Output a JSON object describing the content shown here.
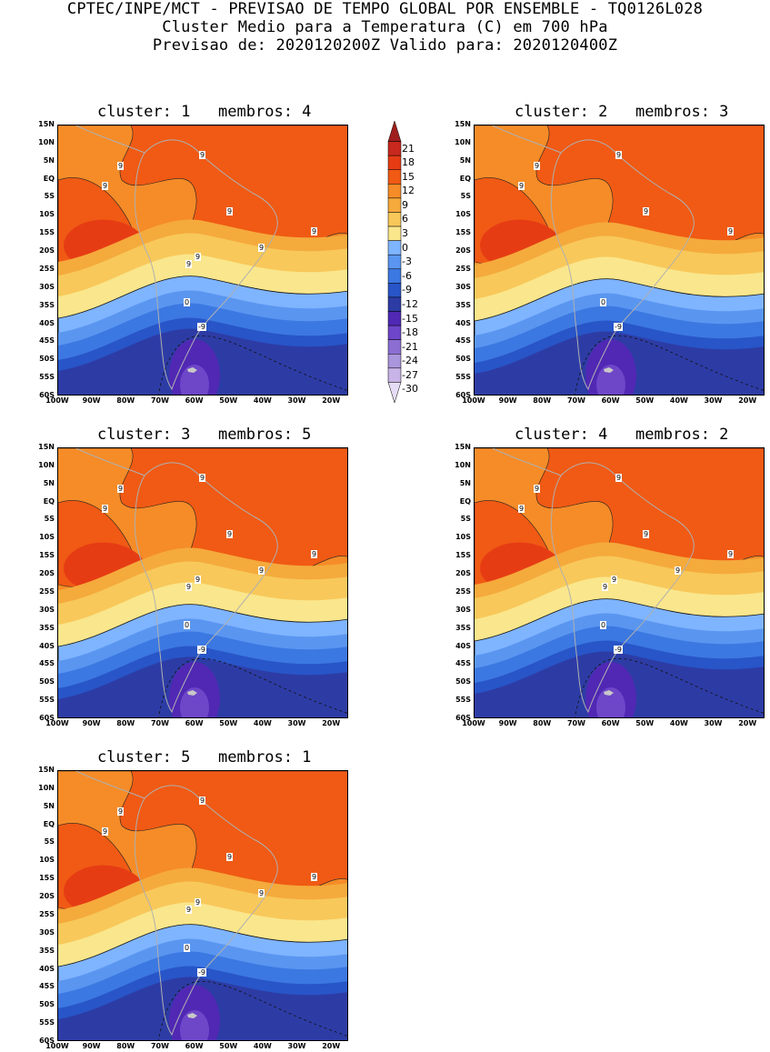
{
  "header": {
    "line1": "CPTEC/INPE/MCT - PREVISAO DE TEMPO GLOBAL POR ENSEMBLE - TQ0126L028",
    "line2": "Cluster Medio para a Temperatura (C) em 700 hPa",
    "line3": "Previsao de: 2020120200Z   Valido para: 2020120400Z"
  },
  "lat_ticks": [
    "15N",
    "10N",
    "5N",
    "EQ",
    "5S",
    "10S",
    "15S",
    "20S",
    "25S",
    "30S",
    "35S",
    "40S",
    "45S",
    "50S",
    "55S",
    "60S"
  ],
  "lon_ticks": [
    "100W",
    "90W",
    "80W",
    "70W",
    "60W",
    "50W",
    "40W",
    "30W",
    "20W"
  ],
  "colorbar": {
    "labels": [
      "21",
      "18",
      "15",
      "12",
      "9",
      "6",
      "3",
      "0",
      "-3",
      "-6",
      "-9",
      "-12",
      "-15",
      "-18",
      "-21",
      "-24",
      "-27",
      "-30"
    ],
    "colors": [
      "#a01e1e",
      "#c8281e",
      "#e63c14",
      "#f05a14",
      "#f58c28",
      "#f5aa3c",
      "#f8c85a",
      "#fae68c",
      "#7fb4ff",
      "#5a96f0",
      "#3c78e1",
      "#2855c8",
      "#2d3ca5",
      "#5028b4",
      "#6e46c8",
      "#8c6ed2",
      "#aa96dc",
      "#c8b4e6",
      "#e6dcf5"
    ]
  },
  "panels": [
    {
      "title": "cluster: 1   membros: 4",
      "labels": [
        "9",
        "9",
        "9",
        "9",
        "9",
        "9",
        "9",
        "9",
        "0",
        "-9"
      ]
    },
    {
      "title": "cluster: 2   membros: 3",
      "labels": [
        "9",
        "9",
        "9",
        "9",
        "9",
        "0",
        "-9"
      ]
    },
    {
      "title": "cluster: 3   membros: 5",
      "labels": [
        "9",
        "9",
        "9",
        "9",
        "9",
        "9",
        "9",
        "9",
        "0",
        "0",
        "-9"
      ]
    },
    {
      "title": "cluster: 4   membros: 2",
      "labels": [
        "9",
        "9",
        "9",
        "9",
        "9",
        "9",
        "9",
        "9",
        "9",
        "0",
        "-9"
      ]
    },
    {
      "title": "cluster: 5   membros: 1",
      "labels": [
        "9",
        "9",
        "9",
        "9",
        "9",
        "9",
        "9",
        "9",
        "0",
        "-9"
      ]
    }
  ],
  "chart_data": {
    "type": "heatmap",
    "title": "Cluster Medio para a Temperatura (C) em 700 hPa",
    "variable": "Temperature 700 hPa (C)",
    "lat_range": [
      "60S",
      "15N"
    ],
    "lon_range": [
      "100W",
      "15W"
    ],
    "contour_levels": [
      21,
      18,
      15,
      12,
      9,
      6,
      3,
      0,
      -3,
      -6,
      -9,
      -12,
      -15,
      -18,
      -21,
      -24,
      -27,
      -30
    ],
    "clusters": [
      {
        "cluster": 1,
        "membros": 4
      },
      {
        "cluster": 2,
        "membros": 3
      },
      {
        "cluster": 3,
        "membros": 5
      },
      {
        "cluster": 4,
        "membros": 2
      },
      {
        "cluster": 5,
        "membros": 1
      }
    ]
  }
}
